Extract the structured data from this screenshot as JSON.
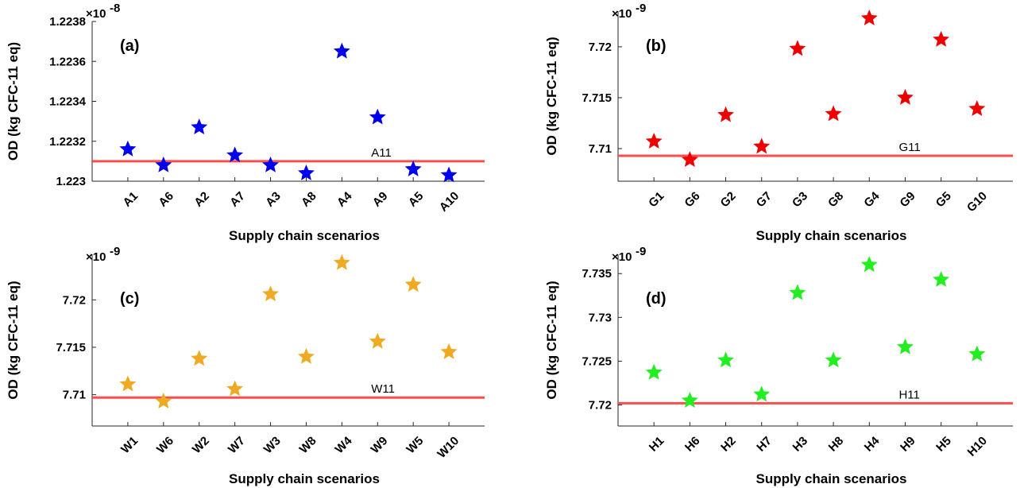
{
  "chart_data": [
    {
      "type": "scatter",
      "panel_label": "(a)",
      "categories": [
        "A1",
        "A6",
        "A2",
        "A7",
        "A3",
        "A8",
        "A4",
        "A9",
        "A5",
        "A10"
      ],
      "values": [
        1.22316,
        1.22308,
        1.22327,
        1.22313,
        1.22308,
        1.22304,
        1.22365,
        1.22332,
        1.22306,
        1.22303
      ],
      "reference": {
        "label": "A11",
        "value": 1.2231,
        "color": "#ff4d4d"
      },
      "color": "#0000ee",
      "xlabel": "Supply chain scenarios",
      "ylabel": "OD (kg CFC-11 eq)",
      "multiplier": "×10",
      "multiplier_exp": "-8",
      "ylim": [
        1.223,
        1.2238
      ],
      "yticks": [
        1.223,
        1.2232,
        1.2234,
        1.2236,
        1.2238
      ],
      "ytick_labels": [
        "1.223",
        "1.2232",
        "1.2234",
        "1.2236",
        "1.2238"
      ]
    },
    {
      "type": "scatter",
      "panel_label": "(b)",
      "categories": [
        "G1",
        "G6",
        "G2",
        "G7",
        "G3",
        "G8",
        "G4",
        "G9",
        "G5",
        "G10"
      ],
      "values": [
        7.7107,
        7.7089,
        7.7133,
        7.7102,
        7.7198,
        7.7134,
        7.7228,
        7.715,
        7.7207,
        7.7139
      ],
      "reference": {
        "label": "G11",
        "value": 7.7093,
        "color": "#ff4d4d"
      },
      "color": "#ee0000",
      "xlabel": "Supply chain scenarios",
      "ylabel": "OD (kg CFC-11 eq)",
      "multiplier": "×10",
      "multiplier_exp": "-9",
      "ylim": [
        7.7068,
        7.7235
      ],
      "yticks": [
        7.71,
        7.715,
        7.72
      ],
      "ytick_labels": [
        "7.71",
        "7.715",
        "7.72"
      ]
    },
    {
      "type": "scatter",
      "panel_label": "(c)",
      "categories": [
        "W1",
        "W6",
        "W2",
        "W7",
        "W3",
        "W8",
        "W4",
        "W9",
        "W5",
        "W10"
      ],
      "values": [
        7.7111,
        7.7093,
        7.7138,
        7.7106,
        7.7206,
        7.714,
        7.7239,
        7.7156,
        7.7216,
        7.7145
      ],
      "reference": {
        "label": "W11",
        "value": 7.7097,
        "color": "#ff4d4d"
      },
      "color": "#eeaa22",
      "xlabel": "Supply chain scenarios",
      "ylabel": "OD (kg CFC-11 eq)",
      "multiplier": "×10",
      "multiplier_exp": "-9",
      "ylim": [
        7.7067,
        7.7248
      ],
      "yticks": [
        7.71,
        7.715,
        7.72
      ],
      "ytick_labels": [
        "7.71",
        "7.715",
        "7.72"
      ]
    },
    {
      "type": "scatter",
      "panel_label": "(d)",
      "categories": [
        "H1",
        "H6",
        "H2",
        "H7",
        "H3",
        "H8",
        "H4",
        "H9",
        "H5",
        "H10"
      ],
      "values": [
        7.7237,
        7.7205,
        7.7251,
        7.7212,
        7.7328,
        7.7251,
        7.736,
        7.7266,
        7.7343,
        7.7258
      ],
      "reference": {
        "label": "H11",
        "value": 7.7202,
        "color": "#ff4d4d"
      },
      "color": "#22ee22",
      "xlabel": "Supply chain scenarios",
      "ylabel": "OD (kg CFC-11 eq)",
      "multiplier": "×10",
      "multiplier_exp": "-9",
      "ylim": [
        7.7176,
        7.7372
      ],
      "yticks": [
        7.72,
        7.725,
        7.73,
        7.735
      ],
      "ytick_labels": [
        "7.72",
        "7.725",
        "7.73",
        "7.735"
      ]
    }
  ]
}
